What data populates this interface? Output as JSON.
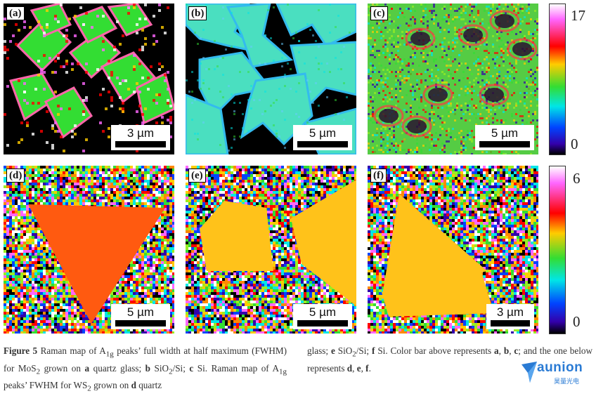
{
  "panels": [
    {
      "id": "a",
      "label": "(a)",
      "scale": "3 µm",
      "row": "top",
      "background": "#000000",
      "flake_color": "#33dd33",
      "style": "mos2_quartz"
    },
    {
      "id": "b",
      "label": "(b)",
      "scale": "5 µm",
      "row": "top",
      "background": "#000000",
      "flake_color": "#33ddcc",
      "style": "mos2_sio2"
    },
    {
      "id": "c",
      "label": "(c)",
      "scale": "5 µm",
      "row": "top",
      "background": "#55cc44",
      "flake_color": "#55cc44",
      "style": "mos2_si"
    },
    {
      "id": "d",
      "label": "(d)",
      "scale": "5 µm",
      "row": "bottom",
      "background": "noise",
      "flake_color": "#ff5a10",
      "style": "ws2_quartz"
    },
    {
      "id": "e",
      "label": "(e)",
      "scale": "5 µm",
      "row": "bottom",
      "background": "noise",
      "flake_color": "#ffc21a",
      "style": "ws2_sio2"
    },
    {
      "id": "f",
      "label": "(f)",
      "scale": "3 µm",
      "row": "bottom",
      "background": "noise",
      "flake_color": "#ffc21a",
      "style": "ws2_si"
    }
  ],
  "colorbars": {
    "top": {
      "max": "17",
      "min": "0"
    },
    "bottom": {
      "max": "6",
      "min": "0"
    },
    "gradient_colors": [
      "#ffffff",
      "#ff66ff",
      "#ff0000",
      "#ffcc00",
      "#33dd33",
      "#00e6e6",
      "#0044ff",
      "#3300aa",
      "#000000"
    ]
  },
  "caption": {
    "fig_label": "Figure 5",
    "t1": " Raman map of A",
    "t1_sub": "1g",
    "t2": " peaks’ full width at half maximum (FWHM) for MoS",
    "t2_sub": "2",
    "t3": " grown on ",
    "a": "a",
    "t4": " quartz glass; ",
    "b": "b",
    "t5": " SiO",
    "t5_sub": "2",
    "t6": "/Si; ",
    "c": "c",
    "t7": " Si. Raman map of A",
    "t7_sub": "1g",
    "t8": " peaks’ FWHM for WS",
    "t8_sub": "2",
    "t9": " grown on ",
    "d": "d",
    "t10": " quartz",
    "r1": "glass; ",
    "e": "e",
    "r2": " SiO",
    "r2_sub": "2",
    "r3": "/Si; ",
    "f": "f",
    "r4": " Si. Color bar above represents ",
    "ra": "a",
    "r5": ", ",
    "rb": "b",
    "r6": ", ",
    "rc": "c",
    "r7": "; and the one below represents ",
    "rd": "d",
    "r8": ", ",
    "re": "e",
    "r9": ", ",
    "rf": "f",
    "r10": "."
  },
  "logo": {
    "word": "aunion",
    "sub": "昊量光电",
    "accent": "#2a7bd4"
  }
}
